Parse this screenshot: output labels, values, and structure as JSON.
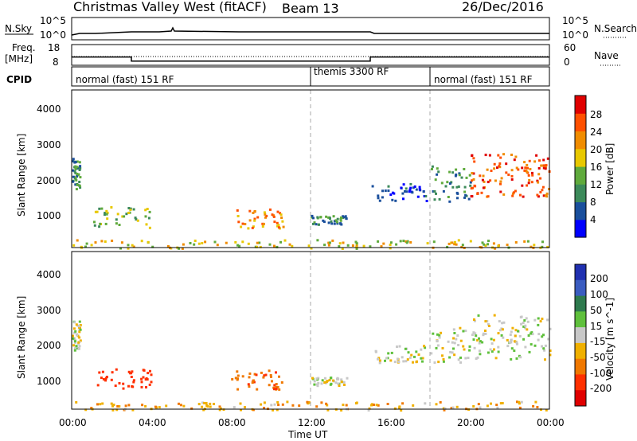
{
  "header": {
    "station": "Christmas Valley West (fitACF)",
    "beam": "Beam 13",
    "date": "26/Dec/2016"
  },
  "nsky_panel": {
    "left_label": "N.Sky",
    "right_label": "N.Search",
    "left_ticks": [
      "10^5",
      "10^0"
    ],
    "right_ticks": [
      "10^5",
      "10^0"
    ]
  },
  "freq_panel": {
    "left_label_1": "Freq.",
    "left_label_2": "[MHz]",
    "right_label": "Nave",
    "left_ticks": [
      "18",
      "8"
    ],
    "right_ticks": [
      "60",
      "0"
    ]
  },
  "cpid_panel": {
    "label": "CPID",
    "segments": [
      {
        "label": "normal (fast) 151 RF",
        "start_h": 0,
        "end_h": 12
      },
      {
        "label": "themis 3300 RF",
        "start_h": 12,
        "end_h": 18
      },
      {
        "label": "normal (fast) 151 RF",
        "start_h": 18,
        "end_h": 24
      }
    ]
  },
  "power_panel": {
    "ylabel": "Slant Range [km]",
    "yticks": [
      "1000",
      "2000",
      "3000",
      "4000"
    ],
    "cbar_label": "Power [dB]",
    "cbar_ticks": [
      "4",
      "8",
      "12",
      "16",
      "20",
      "24",
      "28"
    ],
    "colors": [
      "#0000ff",
      "#1a4f9c",
      "#3c8a5a",
      "#5faa3c",
      "#e8c800",
      "#f08c00",
      "#ff5000",
      "#e00000"
    ]
  },
  "velocity_panel": {
    "ylabel": "Slant Range [km]",
    "yticks": [
      "1000",
      "2000",
      "3000",
      "4000"
    ],
    "cbar_label": "Velocity [m s^-1]",
    "cbar_ticks": [
      "200",
      "100",
      "50",
      "15",
      "-15",
      "-50",
      "-100",
      "-200"
    ],
    "colors": [
      "#2030b0",
      "#3a5cc0",
      "#2e7a4e",
      "#5fc03c",
      "#c8c8c8",
      "#f0b000",
      "#f07800",
      "#ff3000",
      "#e00000"
    ]
  },
  "xaxis": {
    "label": "Time UT",
    "ticks": [
      "00:00",
      "04:00",
      "08:00",
      "12:00",
      "16:00",
      "20:00",
      "00:00"
    ]
  },
  "chart_data": {
    "type": "heatmap",
    "title": "Christmas Valley West (fitACF)",
    "subtitle": "Beam 13",
    "date": "26/Dec/2016",
    "xlabel": "Time UT",
    "ylabel": "Slant Range [km]",
    "x_range_h": [
      0,
      24
    ],
    "y_range_km": [
      180,
      4600
    ],
    "freq_mhz": {
      "segments": [
        {
          "start_h": 0,
          "end_h": 3,
          "value": 12
        },
        {
          "start_h": 3,
          "end_h": 15,
          "value": 10
        },
        {
          "start_h": 15,
          "end_h": 24,
          "value": 12
        }
      ]
    },
    "power_regions": [
      {
        "t0": 0.0,
        "t1": 0.4,
        "r0": 1850,
        "r1": 2700,
        "level": 2
      },
      {
        "t0": 1.0,
        "t1": 4.0,
        "r0": 750,
        "r1": 1350,
        "level": 3
      },
      {
        "t0": 8.0,
        "t1": 10.6,
        "r0": 750,
        "r1": 1300,
        "level": 5
      },
      {
        "t0": 12.0,
        "t1": 13.8,
        "r0": 850,
        "r1": 1100,
        "level": 2
      },
      {
        "t0": 15.0,
        "t1": 17.8,
        "r0": 1500,
        "r1": 2000,
        "level": 1
      },
      {
        "t0": 18.0,
        "t1": 20.0,
        "r0": 1500,
        "r1": 2500,
        "level": 2
      },
      {
        "t0": 20.0,
        "t1": 24.0,
        "r0": 1600,
        "r1": 2850,
        "level": 6
      },
      {
        "t0": 0.0,
        "t1": 24.0,
        "r0": 180,
        "r1": 420,
        "level": 4
      }
    ],
    "velocity_regions": [
      {
        "t0": 0.0,
        "t1": 0.4,
        "r0": 1850,
        "r1": 2700,
        "value": 0
      },
      {
        "t0": 1.0,
        "t1": 4.0,
        "r0": 750,
        "r1": 1350,
        "value": -150
      },
      {
        "t0": 8.0,
        "t1": 10.6,
        "r0": 750,
        "r1": 1300,
        "value": -80
      },
      {
        "t0": 12.0,
        "t1": 13.8,
        "r0": 850,
        "r1": 1100,
        "value": 0
      },
      {
        "t0": 15.0,
        "t1": 17.8,
        "r0": 1500,
        "r1": 2000,
        "value": 0
      },
      {
        "t0": 18.0,
        "t1": 20.0,
        "r0": 1500,
        "r1": 2500,
        "value": 0
      },
      {
        "t0": 20.0,
        "t1": 24.0,
        "r0": 1600,
        "r1": 2850,
        "value": 0
      },
      {
        "t0": 0.0,
        "t1": 24.0,
        "r0": 180,
        "r1": 420,
        "value": -40
      }
    ]
  }
}
